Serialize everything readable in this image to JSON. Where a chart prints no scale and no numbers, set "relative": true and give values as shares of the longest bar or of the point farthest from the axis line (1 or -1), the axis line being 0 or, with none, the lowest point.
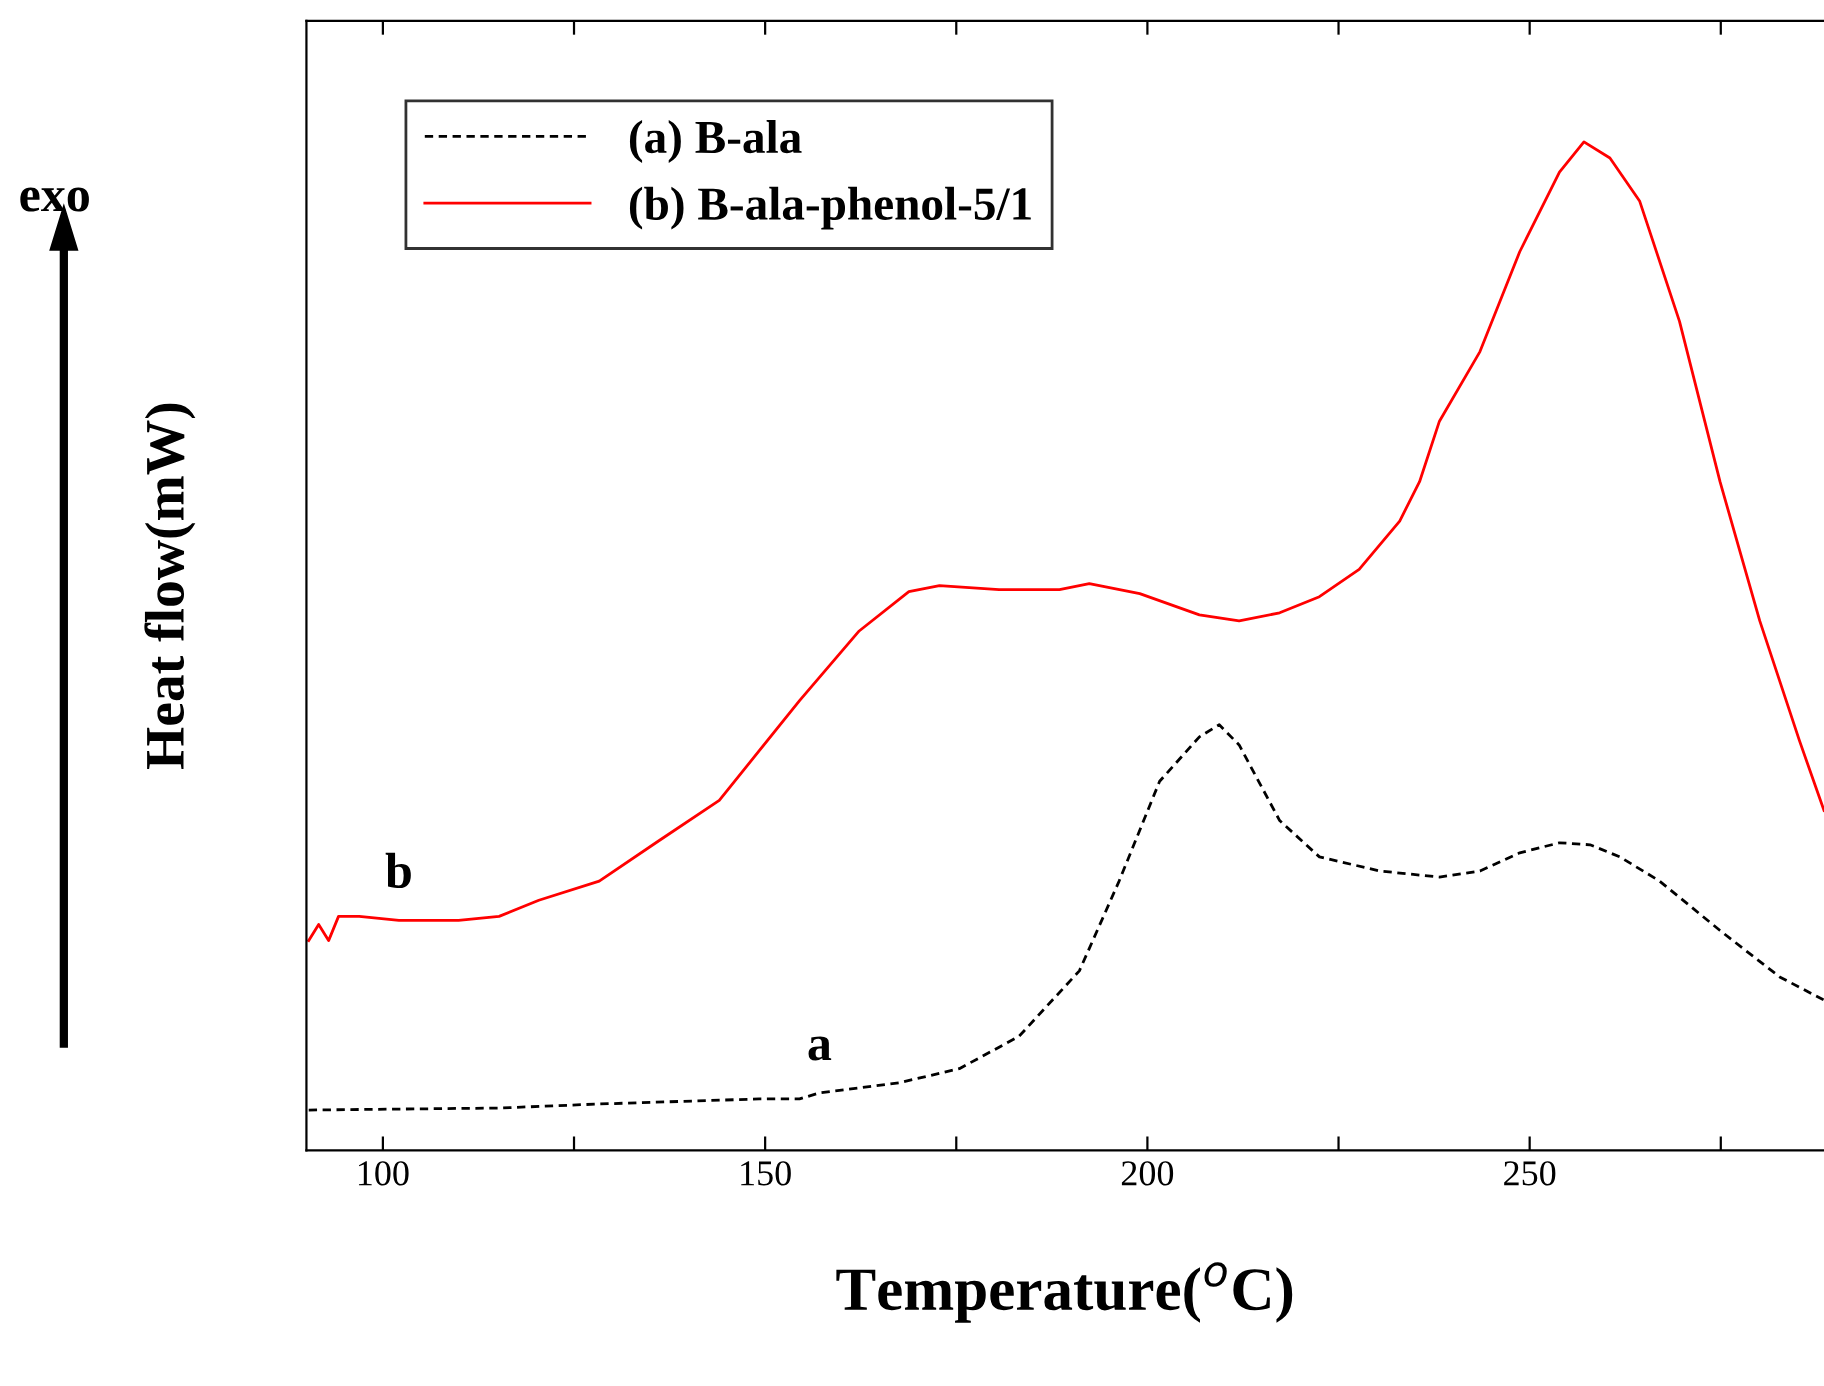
{
  "chart_data": {
    "type": "line",
    "relative": true,
    "xlabel": "Temperature($^{o}$C)",
    "ylabel": "Heat flow(mW)",
    "xlim": [
      90,
      288.5
    ],
    "xticks": [
      100,
      {
        "value": 125,
        "label": null
      },
      150,
      {
        "value": 175,
        "label": null
      },
      200,
      {
        "value": 225,
        "label": null
      },
      250,
      {
        "value": 275,
        "label": null
      }
    ],
    "tick_labels": "x",
    "legend": "top left",
    "grid": false,
    "annotations": [
      "b",
      "a",
      "exo"
    ],
    "series": [
      {
        "name": "(a) B-ala",
        "color": "#000000",
        "line_style": "dashed",
        "x": [
          90.3,
          115.2,
          128.3,
          149.2,
          154.5,
          157.1,
          167.5,
          175.4,
          183.2,
          191.1,
          196.3,
          201.6,
          206.8,
          209.4,
          212.0,
          217.3,
          222.5,
          230.4,
          238.2,
          243.5,
          248.7,
          253.9,
          257.9,
          261.8,
          267.0,
          274.9,
          282.7,
          288.5
        ],
        "values": [
          0.04,
          0.042,
          0.046,
          0.051,
          0.051,
          0.057,
          0.067,
          0.081,
          0.113,
          0.178,
          0.267,
          0.366,
          0.41,
          0.422,
          0.402,
          0.327,
          0.291,
          0.277,
          0.271,
          0.277,
          0.295,
          0.305,
          0.303,
          0.291,
          0.267,
          0.218,
          0.172,
          0.149
        ]
      },
      {
        "name": "(b) B-ala-phenol-5/1",
        "color": "#ff0000",
        "line_style": "solid",
        "x": [
          90.3,
          91.6,
          92.9,
          94.2,
          96.9,
          102.1,
          109.9,
          115.2,
          120.4,
          128.3,
          136.1,
          144.0,
          154.5,
          162.3,
          168.8,
          172.8,
          180.6,
          188.5,
          192.4,
          199.0,
          206.8,
          212.0,
          217.3,
          222.5,
          227.7,
          233.0,
          235.6,
          238.2,
          243.5,
          248.7,
          253.9,
          257.1,
          260.5,
          264.4,
          269.6,
          274.9,
          280.1,
          285.3,
          288.5
        ],
        "values": [
          0.208,
          0.224,
          0.208,
          0.232,
          0.232,
          0.228,
          0.228,
          0.232,
          0.248,
          0.267,
          0.307,
          0.347,
          0.446,
          0.515,
          0.554,
          0.56,
          0.556,
          0.556,
          0.562,
          0.552,
          0.531,
          0.525,
          0.533,
          0.549,
          0.576,
          0.624,
          0.663,
          0.723,
          0.792,
          0.891,
          0.97,
          1.0,
          0.984,
          0.941,
          0.822,
          0.663,
          0.525,
          0.406,
          0.337
        ]
      }
    ]
  }
}
